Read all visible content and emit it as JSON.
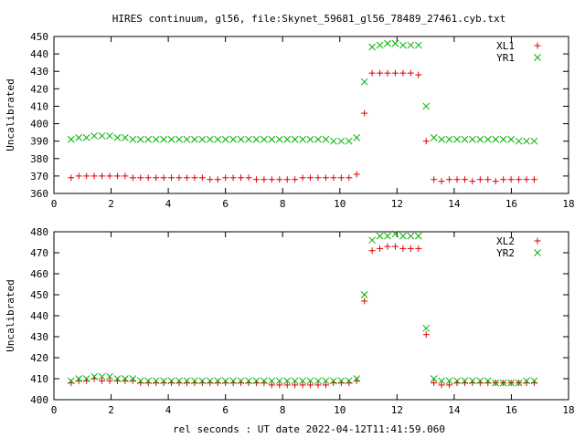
{
  "title": "HIRES continuum, gl56, file:Skynet_59681_gl56_78489_27461.cyb.txt",
  "xlabel": "rel seconds : UT date 2022-04-12T11:41:59.060",
  "colors": {
    "red": "#e00000",
    "green": "#00b000",
    "axis": "#000000",
    "background": "#ffffff"
  },
  "chart_data": [
    {
      "type": "scatter",
      "ylabel": "Uncalibrated",
      "xlim": [
        0,
        18
      ],
      "ylim": [
        360,
        450
      ],
      "x_ticks": [
        0,
        2,
        4,
        6,
        8,
        10,
        12,
        14,
        16,
        18
      ],
      "y_ticks": [
        360,
        370,
        380,
        390,
        400,
        410,
        420,
        430,
        440,
        450
      ],
      "legend_position": "top-right",
      "series": [
        {
          "name": "XL1",
          "marker": "+",
          "color": "#e00000",
          "x": [
            0.6,
            0.87,
            1.14,
            1.41,
            1.68,
            1.95,
            2.22,
            2.49,
            2.76,
            3.03,
            3.3,
            3.57,
            3.84,
            4.11,
            4.38,
            4.65,
            4.92,
            5.19,
            5.46,
            5.73,
            6.0,
            6.27,
            6.54,
            6.81,
            7.08,
            7.35,
            7.62,
            7.89,
            8.16,
            8.43,
            8.7,
            8.97,
            9.24,
            9.51,
            9.78,
            10.05,
            10.32,
            10.59,
            10.86,
            11.13,
            11.4,
            11.67,
            11.94,
            12.21,
            12.48,
            12.75,
            13.02,
            13.29,
            13.56,
            13.83,
            14.1,
            14.37,
            14.64,
            14.91,
            15.18,
            15.45,
            15.72,
            15.99,
            16.26,
            16.53,
            16.8
          ],
          "y": [
            369,
            370,
            370,
            370,
            370,
            370,
            370,
            370,
            369,
            369,
            369,
            369,
            369,
            369,
            369,
            369,
            369,
            369,
            368,
            368,
            369,
            369,
            369,
            369,
            368,
            368,
            368,
            368,
            368,
            368,
            369,
            369,
            369,
            369,
            369,
            369,
            369,
            371,
            406,
            429,
            429,
            429,
            429,
            429,
            429,
            428,
            390,
            368,
            367,
            368,
            368,
            368,
            367,
            368,
            368,
            367,
            368,
            368,
            368,
            368,
            368
          ]
        },
        {
          "name": "YR1",
          "marker": "x",
          "color": "#00b000",
          "x": [
            0.6,
            0.87,
            1.14,
            1.41,
            1.68,
            1.95,
            2.22,
            2.49,
            2.76,
            3.03,
            3.3,
            3.57,
            3.84,
            4.11,
            4.38,
            4.65,
            4.92,
            5.19,
            5.46,
            5.73,
            6.0,
            6.27,
            6.54,
            6.81,
            7.08,
            7.35,
            7.62,
            7.89,
            8.16,
            8.43,
            8.7,
            8.97,
            9.24,
            9.51,
            9.78,
            10.05,
            10.32,
            10.59,
            10.86,
            11.13,
            11.4,
            11.67,
            11.94,
            12.21,
            12.48,
            12.75,
            13.02,
            13.29,
            13.56,
            13.83,
            14.1,
            14.37,
            14.64,
            14.91,
            15.18,
            15.45,
            15.72,
            15.99,
            16.26,
            16.53,
            16.8
          ],
          "y": [
            391,
            392,
            392,
            393,
            393,
            393,
            392,
            392,
            391,
            391,
            391,
            391,
            391,
            391,
            391,
            391,
            391,
            391,
            391,
            391,
            391,
            391,
            391,
            391,
            391,
            391,
            391,
            391,
            391,
            391,
            391,
            391,
            391,
            391,
            390,
            390,
            390,
            392,
            424,
            444,
            445,
            446,
            446,
            445,
            445,
            445,
            410,
            392,
            391,
            391,
            391,
            391,
            391,
            391,
            391,
            391,
            391,
            391,
            390,
            390,
            390
          ]
        }
      ]
    },
    {
      "type": "scatter",
      "ylabel": "Uncalibrated",
      "xlim": [
        0,
        18
      ],
      "ylim": [
        400,
        480
      ],
      "x_ticks": [
        0,
        2,
        4,
        6,
        8,
        10,
        12,
        14,
        16,
        18
      ],
      "y_ticks": [
        400,
        410,
        420,
        430,
        440,
        450,
        460,
        470,
        480
      ],
      "legend_position": "top-right",
      "series": [
        {
          "name": "XL2",
          "marker": "+",
          "color": "#e00000",
          "x": [
            0.6,
            0.87,
            1.14,
            1.41,
            1.68,
            1.95,
            2.22,
            2.49,
            2.76,
            3.03,
            3.3,
            3.57,
            3.84,
            4.11,
            4.38,
            4.65,
            4.92,
            5.19,
            5.46,
            5.73,
            6.0,
            6.27,
            6.54,
            6.81,
            7.08,
            7.35,
            7.62,
            7.89,
            8.16,
            8.43,
            8.7,
            8.97,
            9.24,
            9.51,
            9.78,
            10.05,
            10.32,
            10.59,
            10.86,
            11.13,
            11.4,
            11.67,
            11.94,
            12.21,
            12.48,
            12.75,
            13.02,
            13.29,
            13.56,
            13.83,
            14.1,
            14.37,
            14.64,
            14.91,
            15.18,
            15.45,
            15.72,
            15.99,
            16.26,
            16.53,
            16.8
          ],
          "y": [
            408,
            409,
            409,
            410,
            409,
            409,
            409,
            409,
            409,
            408,
            408,
            408,
            408,
            408,
            408,
            408,
            408,
            408,
            408,
            408,
            408,
            408,
            408,
            408,
            408,
            408,
            407,
            407,
            407,
            407,
            407,
            407,
            407,
            407,
            408,
            408,
            408,
            409,
            447,
            471,
            472,
            473,
            473,
            472,
            472,
            472,
            431,
            408,
            407,
            407,
            408,
            408,
            408,
            408,
            408,
            408,
            408,
            408,
            408,
            408,
            408
          ]
        },
        {
          "name": "YR2",
          "marker": "x",
          "color": "#00b000",
          "x": [
            0.6,
            0.87,
            1.14,
            1.41,
            1.68,
            1.95,
            2.22,
            2.49,
            2.76,
            3.03,
            3.3,
            3.57,
            3.84,
            4.11,
            4.38,
            4.65,
            4.92,
            5.19,
            5.46,
            5.73,
            6.0,
            6.27,
            6.54,
            6.81,
            7.08,
            7.35,
            7.62,
            7.89,
            8.16,
            8.43,
            8.7,
            8.97,
            9.24,
            9.51,
            9.78,
            10.05,
            10.32,
            10.59,
            10.86,
            11.13,
            11.4,
            11.67,
            11.94,
            12.21,
            12.48,
            12.75,
            13.02,
            13.29,
            13.56,
            13.83,
            14.1,
            14.37,
            14.64,
            14.91,
            15.18,
            15.45,
            15.72,
            15.99,
            16.26,
            16.53,
            16.8
          ],
          "y": [
            409,
            410,
            410,
            411,
            411,
            411,
            410,
            410,
            410,
            409,
            409,
            409,
            409,
            409,
            409,
            409,
            409,
            409,
            409,
            409,
            409,
            409,
            409,
            409,
            409,
            409,
            409,
            409,
            409,
            409,
            409,
            409,
            409,
            409,
            409,
            409,
            409,
            410,
            450,
            476,
            478,
            478,
            479,
            478,
            478,
            478,
            434,
            410,
            409,
            409,
            409,
            409,
            409,
            409,
            409,
            408,
            408,
            408,
            408,
            409,
            409
          ]
        }
      ]
    }
  ]
}
